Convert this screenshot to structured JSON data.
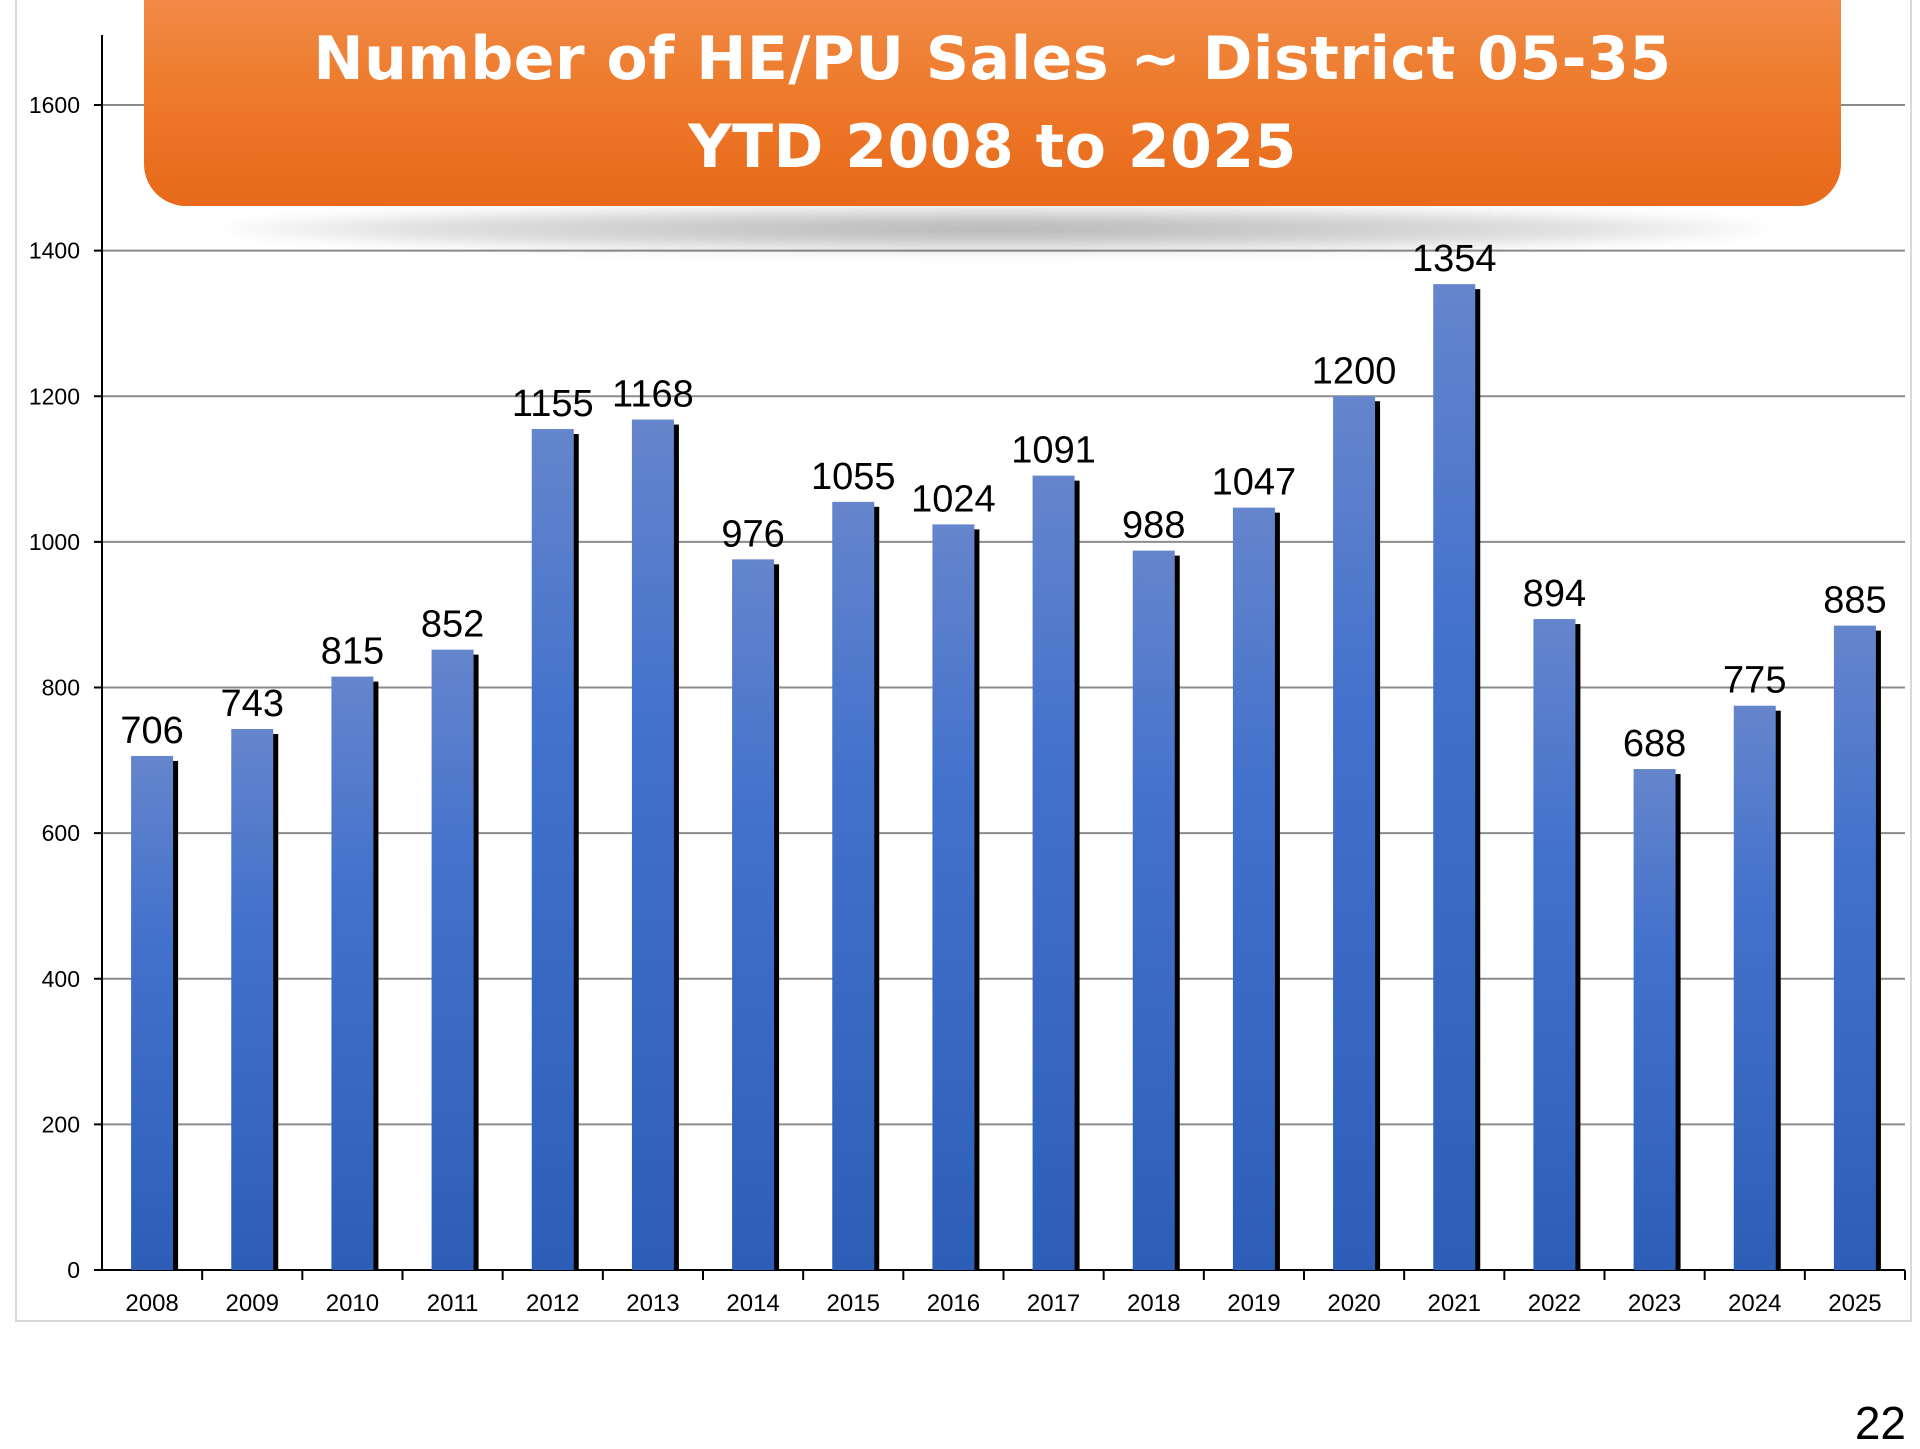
{
  "title": {
    "line1": "Number of HE/PU Sales ~ District 05-35",
    "line2": "YTD 2008 to 2025"
  },
  "page_number": "22",
  "colors": {
    "bar_top": "#6585cc",
    "bar_mid": "#4372cc",
    "bar_bottom": "#2c5eb8",
    "bar_shadow": "#000000",
    "banner": "#ee7a2a",
    "gridline": "#8c8c8c"
  },
  "chart_data": {
    "type": "bar",
    "title": "Number of HE/PU Sales ~ District 05-35 YTD 2008 to 2025",
    "xlabel": "",
    "ylabel": "",
    "categories": [
      "2008",
      "2009",
      "2010",
      "2011",
      "2012",
      "2013",
      "2014",
      "2015",
      "2016",
      "2017",
      "2018",
      "2019",
      "2020",
      "2021",
      "2022",
      "2023",
      "2024",
      "2025"
    ],
    "values": [
      706,
      743,
      815,
      852,
      1155,
      1168,
      976,
      1055,
      1024,
      1091,
      988,
      1047,
      1200,
      1354,
      894,
      688,
      775,
      885
    ],
    "ylim": [
      0,
      1700
    ],
    "yticks": [
      0,
      200,
      400,
      600,
      800,
      1000,
      1200,
      1400,
      1600
    ],
    "grid": true,
    "legend": "none",
    "data_labels": true
  }
}
